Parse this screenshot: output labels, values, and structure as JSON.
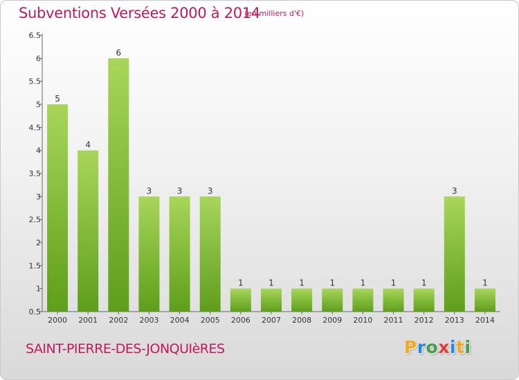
{
  "title": "Subventions Versées 2000 à 2014",
  "unit_note": "(en milliers d'€)",
  "commune": "SAINT-PIERRE-DES-JONQUIèRES",
  "logo": {
    "letters": [
      "P",
      "r",
      "o",
      "x",
      "i",
      "t",
      "i"
    ],
    "colors": [
      "#f7a81b",
      "#1e88e5",
      "#43a047",
      "#e53935",
      "#1e88e5",
      "#f7a81b",
      "#43a047"
    ]
  },
  "colors": {
    "title": "#c2185b",
    "bar_light": "#a8d65a",
    "bar_dark": "#5e9e1b",
    "axis": "#666666"
  },
  "chart_data": {
    "type": "bar",
    "categories": [
      "2000",
      "2001",
      "2002",
      "2003",
      "2004",
      "2005",
      "2006",
      "2007",
      "2008",
      "2009",
      "2010",
      "2011",
      "2012",
      "2013",
      "2014"
    ],
    "values": [
      5,
      4,
      6,
      3,
      3,
      3,
      1,
      1,
      1,
      1,
      1,
      1,
      1,
      3,
      1
    ],
    "value_labels": [
      "5",
      "4",
      "6",
      "3",
      "3",
      "3",
      "1",
      "1",
      "1",
      "1",
      "1",
      "1",
      "1",
      "3",
      "1"
    ],
    "yticks": [
      0.5,
      1,
      1.5,
      2,
      2.5,
      3,
      3.5,
      4,
      4.5,
      5,
      5.5,
      6,
      6.5
    ],
    "ytick_labels": [
      "0.5",
      "1",
      "1.5",
      "2",
      "2.5",
      "3",
      "3.5",
      "4",
      "4.5",
      "5",
      "5.5",
      "6",
      "6.5"
    ],
    "ylim": [
      0.5,
      6.5
    ],
    "grid": false,
    "xlabel": "",
    "ylabel": ""
  }
}
